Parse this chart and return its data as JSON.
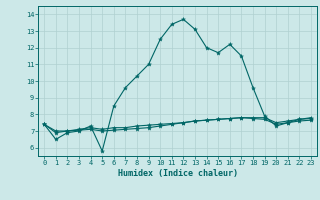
{
  "xlabel": "Humidex (Indice chaleur)",
  "ylabel": "",
  "bg_color": "#cce8e8",
  "grid_color": "#b0d0d0",
  "line_color": "#006666",
  "xlim": [
    -0.5,
    23.5
  ],
  "ylim": [
    5.5,
    14.5
  ],
  "yticks": [
    6,
    7,
    8,
    9,
    10,
    11,
    12,
    13,
    14
  ],
  "xticks": [
    0,
    1,
    2,
    3,
    4,
    5,
    6,
    7,
    8,
    9,
    10,
    11,
    12,
    13,
    14,
    15,
    16,
    17,
    18,
    19,
    20,
    21,
    22,
    23
  ],
  "line1_x": [
    0,
    1,
    2,
    3,
    4,
    5,
    6,
    7,
    8,
    9,
    10,
    11,
    12,
    13,
    14,
    15,
    16,
    17,
    18,
    19,
    20,
    21,
    22,
    23
  ],
  "line1_y": [
    7.4,
    6.5,
    6.9,
    7.0,
    7.3,
    5.8,
    8.5,
    9.6,
    10.3,
    11.0,
    12.5,
    13.4,
    13.7,
    13.1,
    12.0,
    11.7,
    12.2,
    11.5,
    9.6,
    7.9,
    7.3,
    7.5,
    7.7,
    7.8
  ],
  "line2_x": [
    0,
    1,
    2,
    3,
    4,
    5,
    6,
    7,
    8,
    9,
    10,
    11,
    12,
    13,
    14,
    15,
    16,
    17,
    18,
    19,
    20,
    21,
    22,
    23
  ],
  "line2_y": [
    7.4,
    6.9,
    7.0,
    7.1,
    7.2,
    7.1,
    7.2,
    7.2,
    7.3,
    7.35,
    7.4,
    7.45,
    7.5,
    7.6,
    7.65,
    7.7,
    7.75,
    7.8,
    7.8,
    7.8,
    7.5,
    7.6,
    7.7,
    7.75
  ],
  "line3_x": [
    0,
    1,
    2,
    3,
    4,
    5,
    6,
    7,
    8,
    9,
    10,
    11,
    12,
    13,
    14,
    15,
    16,
    17,
    18,
    19,
    20,
    21,
    22,
    23
  ],
  "line3_y": [
    7.4,
    7.0,
    7.0,
    7.05,
    7.1,
    7.0,
    7.05,
    7.1,
    7.15,
    7.2,
    7.3,
    7.4,
    7.5,
    7.6,
    7.65,
    7.7,
    7.75,
    7.8,
    7.75,
    7.7,
    7.4,
    7.5,
    7.6,
    7.65
  ]
}
